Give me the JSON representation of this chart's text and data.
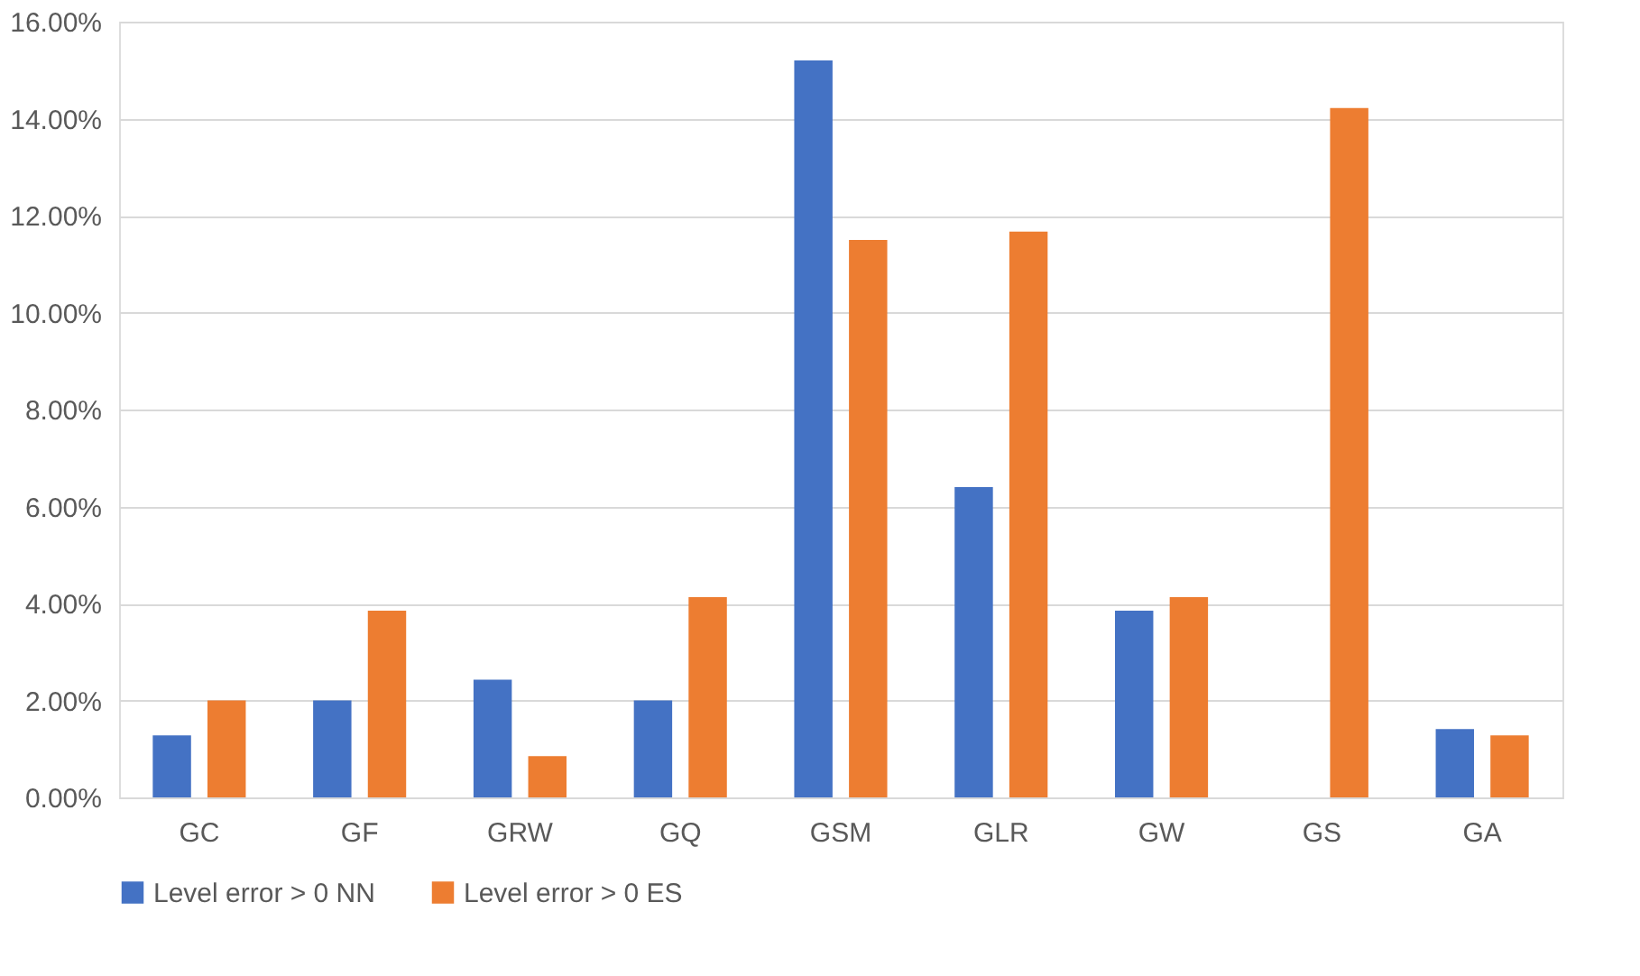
{
  "chart_data": {
    "type": "bar",
    "categories": [
      "GC",
      "GF",
      "GRW",
      "GQ",
      "GSM",
      "GLR",
      "GW",
      "GS",
      "GA"
    ],
    "series": [
      {
        "name": "Level error > 0 NN",
        "color": "#4472c4",
        "values": [
          1.28,
          2.0,
          2.43,
          2.0,
          15.2,
          6.4,
          3.85,
          0,
          1.41
        ]
      },
      {
        "name": "Level error > 0 ES",
        "color": "#ed7d31",
        "values": [
          2.0,
          3.85,
          0.85,
          4.13,
          11.5,
          11.67,
          4.13,
          14.22,
          1.28
        ]
      }
    ],
    "ylim": [
      0,
      16
    ],
    "yticks": [
      {
        "value": 0,
        "label": "0.00%"
      },
      {
        "value": 2,
        "label": "2.00%"
      },
      {
        "value": 4,
        "label": "4.00%"
      },
      {
        "value": 6,
        "label": "6.00%"
      },
      {
        "value": 8,
        "label": "8.00%"
      },
      {
        "value": 10,
        "label": "10.00%"
      },
      {
        "value": 12,
        "label": "12.00%"
      },
      {
        "value": 14,
        "label": "14.00%"
      },
      {
        "value": 16,
        "label": "16.00%"
      }
    ],
    "grid": "y",
    "legend": "bottom"
  }
}
